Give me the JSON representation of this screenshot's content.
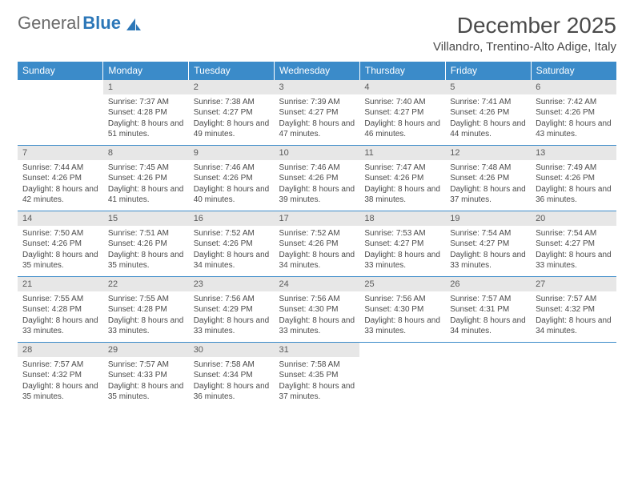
{
  "brand": {
    "name1": "General",
    "name2": "Blue"
  },
  "title": "December 2025",
  "location": "Villandro, Trentino-Alto Adige, Italy",
  "colors": {
    "header_bg": "#3b8bc9",
    "header_text": "#ffffff",
    "daynum_bg": "#e7e7e7",
    "border": "#3b8bc9",
    "text": "#4a4a4a",
    "logo_gray": "#6a6a6a",
    "logo_blue": "#2c77b8",
    "background": "#ffffff"
  },
  "typography": {
    "title_fontsize": 28,
    "location_fontsize": 15,
    "header_fontsize": 12,
    "daynum_fontsize": 11,
    "cell_fontsize": 10
  },
  "day_headers": [
    "Sunday",
    "Monday",
    "Tuesday",
    "Wednesday",
    "Thursday",
    "Friday",
    "Saturday"
  ],
  "weeks": [
    {
      "nums": [
        "",
        "1",
        "2",
        "3",
        "4",
        "5",
        "6"
      ],
      "cells": [
        "",
        "Sunrise: 7:37 AM\nSunset: 4:28 PM\nDaylight: 8 hours and 51 minutes.",
        "Sunrise: 7:38 AM\nSunset: 4:27 PM\nDaylight: 8 hours and 49 minutes.",
        "Sunrise: 7:39 AM\nSunset: 4:27 PM\nDaylight: 8 hours and 47 minutes.",
        "Sunrise: 7:40 AM\nSunset: 4:27 PM\nDaylight: 8 hours and 46 minutes.",
        "Sunrise: 7:41 AM\nSunset: 4:26 PM\nDaylight: 8 hours and 44 minutes.",
        "Sunrise: 7:42 AM\nSunset: 4:26 PM\nDaylight: 8 hours and 43 minutes."
      ]
    },
    {
      "nums": [
        "7",
        "8",
        "9",
        "10",
        "11",
        "12",
        "13"
      ],
      "cells": [
        "Sunrise: 7:44 AM\nSunset: 4:26 PM\nDaylight: 8 hours and 42 minutes.",
        "Sunrise: 7:45 AM\nSunset: 4:26 PM\nDaylight: 8 hours and 41 minutes.",
        "Sunrise: 7:46 AM\nSunset: 4:26 PM\nDaylight: 8 hours and 40 minutes.",
        "Sunrise: 7:46 AM\nSunset: 4:26 PM\nDaylight: 8 hours and 39 minutes.",
        "Sunrise: 7:47 AM\nSunset: 4:26 PM\nDaylight: 8 hours and 38 minutes.",
        "Sunrise: 7:48 AM\nSunset: 4:26 PM\nDaylight: 8 hours and 37 minutes.",
        "Sunrise: 7:49 AM\nSunset: 4:26 PM\nDaylight: 8 hours and 36 minutes."
      ]
    },
    {
      "nums": [
        "14",
        "15",
        "16",
        "17",
        "18",
        "19",
        "20"
      ],
      "cells": [
        "Sunrise: 7:50 AM\nSunset: 4:26 PM\nDaylight: 8 hours and 35 minutes.",
        "Sunrise: 7:51 AM\nSunset: 4:26 PM\nDaylight: 8 hours and 35 minutes.",
        "Sunrise: 7:52 AM\nSunset: 4:26 PM\nDaylight: 8 hours and 34 minutes.",
        "Sunrise: 7:52 AM\nSunset: 4:26 PM\nDaylight: 8 hours and 34 minutes.",
        "Sunrise: 7:53 AM\nSunset: 4:27 PM\nDaylight: 8 hours and 33 minutes.",
        "Sunrise: 7:54 AM\nSunset: 4:27 PM\nDaylight: 8 hours and 33 minutes.",
        "Sunrise: 7:54 AM\nSunset: 4:27 PM\nDaylight: 8 hours and 33 minutes."
      ]
    },
    {
      "nums": [
        "21",
        "22",
        "23",
        "24",
        "25",
        "26",
        "27"
      ],
      "cells": [
        "Sunrise: 7:55 AM\nSunset: 4:28 PM\nDaylight: 8 hours and 33 minutes.",
        "Sunrise: 7:55 AM\nSunset: 4:28 PM\nDaylight: 8 hours and 33 minutes.",
        "Sunrise: 7:56 AM\nSunset: 4:29 PM\nDaylight: 8 hours and 33 minutes.",
        "Sunrise: 7:56 AM\nSunset: 4:30 PM\nDaylight: 8 hours and 33 minutes.",
        "Sunrise: 7:56 AM\nSunset: 4:30 PM\nDaylight: 8 hours and 33 minutes.",
        "Sunrise: 7:57 AM\nSunset: 4:31 PM\nDaylight: 8 hours and 34 minutes.",
        "Sunrise: 7:57 AM\nSunset: 4:32 PM\nDaylight: 8 hours and 34 minutes."
      ]
    },
    {
      "nums": [
        "28",
        "29",
        "30",
        "31",
        "",
        "",
        ""
      ],
      "cells": [
        "Sunrise: 7:57 AM\nSunset: 4:32 PM\nDaylight: 8 hours and 35 minutes.",
        "Sunrise: 7:57 AM\nSunset: 4:33 PM\nDaylight: 8 hours and 35 minutes.",
        "Sunrise: 7:58 AM\nSunset: 4:34 PM\nDaylight: 8 hours and 36 minutes.",
        "Sunrise: 7:58 AM\nSunset: 4:35 PM\nDaylight: 8 hours and 37 minutes.",
        "",
        "",
        ""
      ]
    }
  ]
}
